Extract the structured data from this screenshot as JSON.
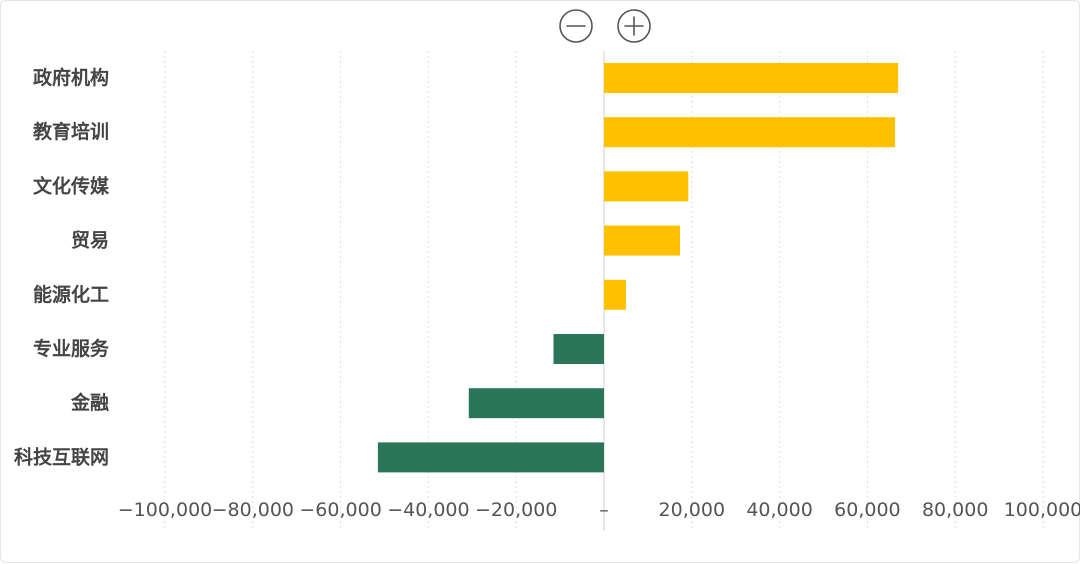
{
  "controls": {
    "zoom_out_icon": "minus-circle-icon",
    "zoom_in_icon": "plus-circle-icon"
  },
  "chart_data": {
    "type": "bar",
    "orientation": "horizontal",
    "categories": [
      "政府机构",
      "教育培训",
      "文化传媒",
      "贸易",
      "能源化工",
      "专业服务",
      "金融",
      "科技互联网"
    ],
    "values": [
      67000,
      66300,
      19200,
      17300,
      5000,
      -11500,
      -30800,
      -51500
    ],
    "xlim": [
      -100000,
      100000
    ],
    "xticks": [
      -100000,
      -80000,
      -60000,
      -40000,
      -20000,
      0,
      20000,
      40000,
      60000,
      80000,
      100000
    ],
    "xtick_labels": [
      "−100,000",
      "−80,000",
      "−60,000",
      "−40,000",
      "−20,000",
      "–",
      "20,000",
      "40,000",
      "60,000",
      "80,000",
      "100,000"
    ],
    "title": "",
    "xlabel": "",
    "ylabel": "",
    "grid": "vertical-dashed",
    "legend": "none",
    "colors": {
      "positive": "#FFC000",
      "negative": "#2B7559"
    }
  }
}
